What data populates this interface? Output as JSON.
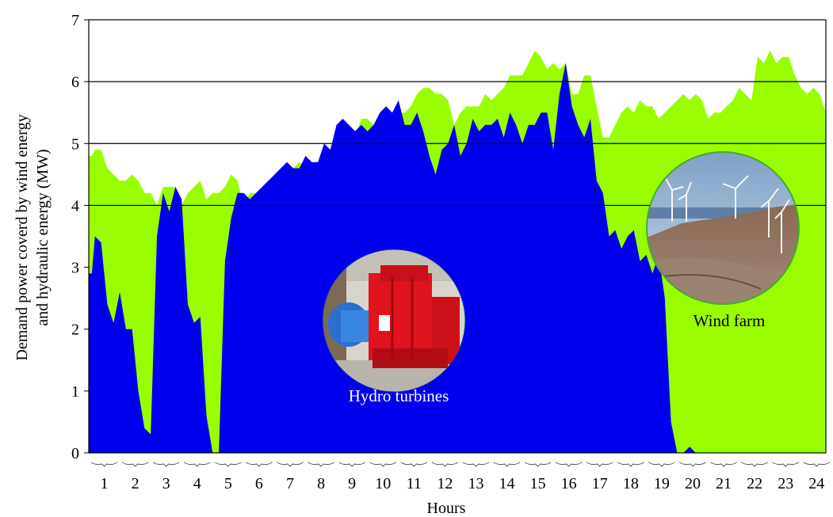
{
  "chart_data": {
    "type": "area",
    "title": "",
    "xlabel": "Hours",
    "ylabel_line1": "Demand power coverd  by wind energy",
    "ylabel_line2": "and hydraulic energy (MW)",
    "ylim": [
      0,
      7
    ],
    "y_ticks": [
      "0",
      "1",
      "2",
      "3",
      "4",
      "5",
      "6",
      "7"
    ],
    "x_ticks": [
      "1",
      "2",
      "3",
      "4",
      "5",
      "6",
      "7",
      "8",
      "9",
      "10",
      "11",
      "12",
      "13",
      "14",
      "15",
      "16",
      "17",
      "18",
      "19",
      "20",
      "21",
      "22",
      "23",
      "24"
    ],
    "grid": "horizontal gridlines at 4, 5, 6 MW",
    "x_hours": [
      0.5,
      0.6,
      0.7,
      0.9,
      1.1,
      1.3,
      1.5,
      1.7,
      1.9,
      2.1,
      2.3,
      2.5,
      2.7,
      2.9,
      3.1,
      3.3,
      3.5,
      3.7,
      3.9,
      4.1,
      4.3,
      4.5,
      4.7,
      4.9,
      5.1,
      5.3,
      5.5,
      5.7,
      5.9,
      6.1,
      6.3,
      6.5,
      6.7,
      6.9,
      7.1,
      7.3,
      7.5,
      7.7,
      7.9,
      8.1,
      8.3,
      8.5,
      8.7,
      8.9,
      9.1,
      9.3,
      9.5,
      9.7,
      9.9,
      10.1,
      10.3,
      10.5,
      10.7,
      10.9,
      11.1,
      11.3,
      11.5,
      11.7,
      11.9,
      12.1,
      12.3,
      12.5,
      12.7,
      12.9,
      13.1,
      13.3,
      13.5,
      13.7,
      13.9,
      14.1,
      14.3,
      14.5,
      14.7,
      14.9,
      15.1,
      15.3,
      15.5,
      15.7,
      15.9,
      16.1,
      16.3,
      16.5,
      16.7,
      16.9,
      17.1,
      17.3,
      17.5,
      17.7,
      17.9,
      18.1,
      18.3,
      18.5,
      18.7,
      18.9,
      19.1,
      19.3,
      19.5,
      19.7,
      19.9,
      20.1,
      20.3,
      20.5,
      20.7,
      20.9,
      21.1,
      21.3,
      21.5,
      21.7,
      21.9,
      22.1,
      22.3,
      22.5,
      22.7,
      22.9,
      23.1,
      23.3,
      23.5,
      23.7,
      23.9,
      24.1,
      24.3
    ],
    "series": [
      {
        "name": "Wind farm",
        "color": "#99ff00",
        "values": [
          4.8,
          4.8,
          4.9,
          4.9,
          4.6,
          4.5,
          4.4,
          4.4,
          4.5,
          4.4,
          4.2,
          4.2,
          4.0,
          4.3,
          4.3,
          4.3,
          4.0,
          4.2,
          4.3,
          4.4,
          4.1,
          4.2,
          4.2,
          4.3,
          4.5,
          4.4,
          4.0,
          4.2,
          4.2,
          4.1,
          4.2,
          4.3,
          4.3,
          4.5,
          4.6,
          4.7,
          4.6,
          4.6,
          4.6,
          4.8,
          4.7,
          4.7,
          5.0,
          5.0,
          5.1,
          5.4,
          5.4,
          5.3,
          5.2,
          5.3,
          5.4,
          5.5,
          5.5,
          5.6,
          5.8,
          5.9,
          5.9,
          5.8,
          5.8,
          5.7,
          5.3,
          5.5,
          5.6,
          5.6,
          5.6,
          5.8,
          5.7,
          5.8,
          5.9,
          6.1,
          6.1,
          6.1,
          6.3,
          6.5,
          6.4,
          6.2,
          6.3,
          6.2,
          6.3,
          5.8,
          5.8,
          6.1,
          6.1,
          5.6,
          5.1,
          5.1,
          5.3,
          5.5,
          5.6,
          5.5,
          5.7,
          5.6,
          5.6,
          5.4,
          5.5,
          5.6,
          5.7,
          5.8,
          5.7,
          5.8,
          5.7,
          5.4,
          5.5,
          5.5,
          5.6,
          5.7,
          5.9,
          5.8,
          5.7,
          6.4,
          6.3,
          6.5,
          6.3,
          6.4,
          6.4,
          6.1,
          5.9,
          5.8,
          5.9,
          5.8,
          5.5
        ]
      },
      {
        "name": "Hydro turbines",
        "color": "#0000ee",
        "values": [
          2.9,
          2.9,
          3.5,
          3.4,
          2.4,
          2.1,
          2.6,
          2.0,
          2.0,
          1.0,
          0.4,
          0.3,
          3.5,
          4.2,
          3.9,
          4.3,
          4.1,
          2.4,
          2.1,
          2.2,
          0.6,
          0.0,
          0.0,
          3.1,
          3.8,
          4.2,
          4.2,
          4.1,
          4.2,
          4.3,
          4.4,
          4.5,
          4.6,
          4.7,
          4.6,
          4.6,
          4.8,
          4.7,
          4.7,
          5.0,
          4.9,
          5.3,
          5.4,
          5.3,
          5.2,
          5.3,
          5.2,
          5.3,
          5.5,
          5.6,
          5.5,
          5.7,
          5.3,
          5.3,
          5.5,
          5.2,
          4.8,
          4.5,
          4.9,
          5.0,
          5.3,
          4.8,
          5.0,
          5.4,
          5.2,
          5.3,
          5.3,
          5.4,
          5.1,
          5.5,
          5.3,
          5.0,
          5.3,
          5.3,
          5.5,
          5.5,
          4.9,
          5.8,
          6.3,
          5.6,
          5.3,
          5.1,
          5.4,
          4.4,
          4.2,
          3.5,
          3.6,
          3.3,
          3.5,
          3.6,
          3.1,
          3.2,
          2.9,
          3.2,
          2.5,
          0.5,
          0.0,
          0.0,
          0.1,
          0.0,
          0.0,
          0.0,
          0.0,
          0.0,
          0.0,
          0.0,
          0.0,
          0.0,
          0.0,
          0.0,
          0.0,
          0.0,
          0.0,
          0.0,
          0.0,
          0.0,
          0.0,
          0.0,
          0.0,
          0.0,
          0.0
        ]
      }
    ],
    "annotations": [
      "Hydro turbines",
      "Wind farm"
    ]
  },
  "colors": {
    "wind_area": "#99ff00",
    "hydro_area": "#0000ee",
    "photo_label_dark": "#000000",
    "photo_label_light": "#ffffff"
  }
}
